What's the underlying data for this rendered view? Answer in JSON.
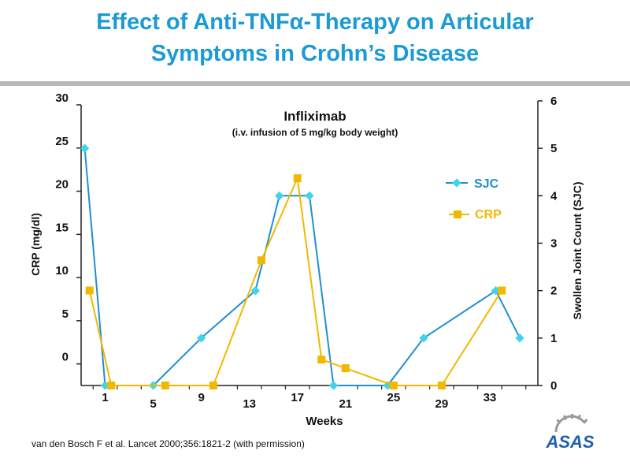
{
  "title": {
    "line1": "Effect of Anti-TNFα-Therapy on Articular",
    "line2": "Symptoms in Crohn’s Disease"
  },
  "citation": "van den Bosch F et al. Lancet 2000;356:1821-2 (with permission)",
  "logo_text": "ASAS",
  "colors": {
    "title": "#1a9ad6",
    "rule": "#b8b8b8",
    "sjc": "#1f8fd0",
    "sjc_marker": "#3fd3ec",
    "crp": "#f2b800"
  },
  "chart_data": {
    "type": "line",
    "title": "Infliximab",
    "subtitle": "(i.v. infusion of 5 mg/kg body weight)",
    "xlabel": "Weeks",
    "ylabel_left": "CRP (mg/dl)",
    "ylabel_right": "Swollen Joint Count (SJC)",
    "x_range": [
      -1,
      37
    ],
    "x_ticks": [
      1,
      5,
      9,
      13,
      17,
      21,
      25,
      29,
      33
    ],
    "left_ticks": [
      0,
      5,
      10,
      15,
      20,
      25,
      30
    ],
    "left_range": [
      -2.5,
      30
    ],
    "right_ticks": [
      0,
      1,
      2,
      3,
      4,
      5,
      6
    ],
    "right_range": [
      0,
      6
    ],
    "legend_position": "right, upper-middle",
    "grid": false,
    "series": [
      {
        "name": "SJC",
        "axis": "right",
        "marker": "diamond",
        "points": [
          [
            -0.7,
            5
          ],
          [
            1,
            0
          ],
          [
            5,
            0
          ],
          [
            9,
            1
          ],
          [
            13.5,
            2
          ],
          [
            15.5,
            4
          ],
          [
            18,
            4
          ],
          [
            20,
            0
          ],
          [
            24.5,
            0
          ],
          [
            27.5,
            1
          ],
          [
            33.5,
            2
          ],
          [
            35.5,
            1
          ]
        ]
      },
      {
        "name": "CRP",
        "axis": "left",
        "marker": "square",
        "points": [
          [
            -0.3,
            8.5
          ],
          [
            1.5,
            -2.5
          ],
          [
            6,
            -2.5
          ],
          [
            10,
            -2.5
          ],
          [
            14,
            12
          ],
          [
            17,
            21.5
          ],
          [
            19,
            0.5
          ],
          [
            21,
            -0.5
          ],
          [
            25,
            -2.5
          ],
          [
            29,
            -2.5
          ],
          [
            34,
            8.5
          ]
        ]
      }
    ]
  }
}
